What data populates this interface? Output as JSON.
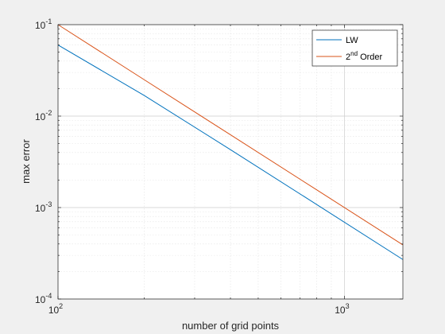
{
  "chart_data": {
    "type": "line",
    "title": "",
    "xlabel": "number of grid points",
    "ylabel": "max error",
    "xscale": "log",
    "yscale": "log",
    "xlim": [
      100,
      1600
    ],
    "ylim": [
      0.0001,
      0.1
    ],
    "grid": true,
    "minor_grid": true,
    "legend_position": "top-right",
    "x_ticks": [
      {
        "value": 100,
        "base": "10",
        "exp": "2"
      },
      {
        "value": 1000,
        "base": "10",
        "exp": "3"
      }
    ],
    "y_ticks": [
      {
        "value": 0.0001,
        "base": "10",
        "exp": "-4"
      },
      {
        "value": 0.001,
        "base": "10",
        "exp": "-3"
      },
      {
        "value": 0.01,
        "base": "10",
        "exp": "-2"
      },
      {
        "value": 0.1,
        "base": "10",
        "exp": "-1"
      }
    ],
    "series": [
      {
        "name": "LW",
        "color": "#0072bd",
        "x": [
          100,
          200,
          400,
          800,
          1600
        ],
        "y": [
          0.06,
          0.0168,
          0.0043,
          0.00108,
          0.00027
        ]
      },
      {
        "name": "2nd Order",
        "legend_base": "2",
        "legend_sup": "nd",
        "legend_rest": " Order",
        "color": "#d95319",
        "x": [
          100,
          200,
          400,
          800,
          1600
        ],
        "y": [
          0.1,
          0.025,
          0.00625,
          0.0015625,
          0.000390625
        ]
      }
    ]
  }
}
